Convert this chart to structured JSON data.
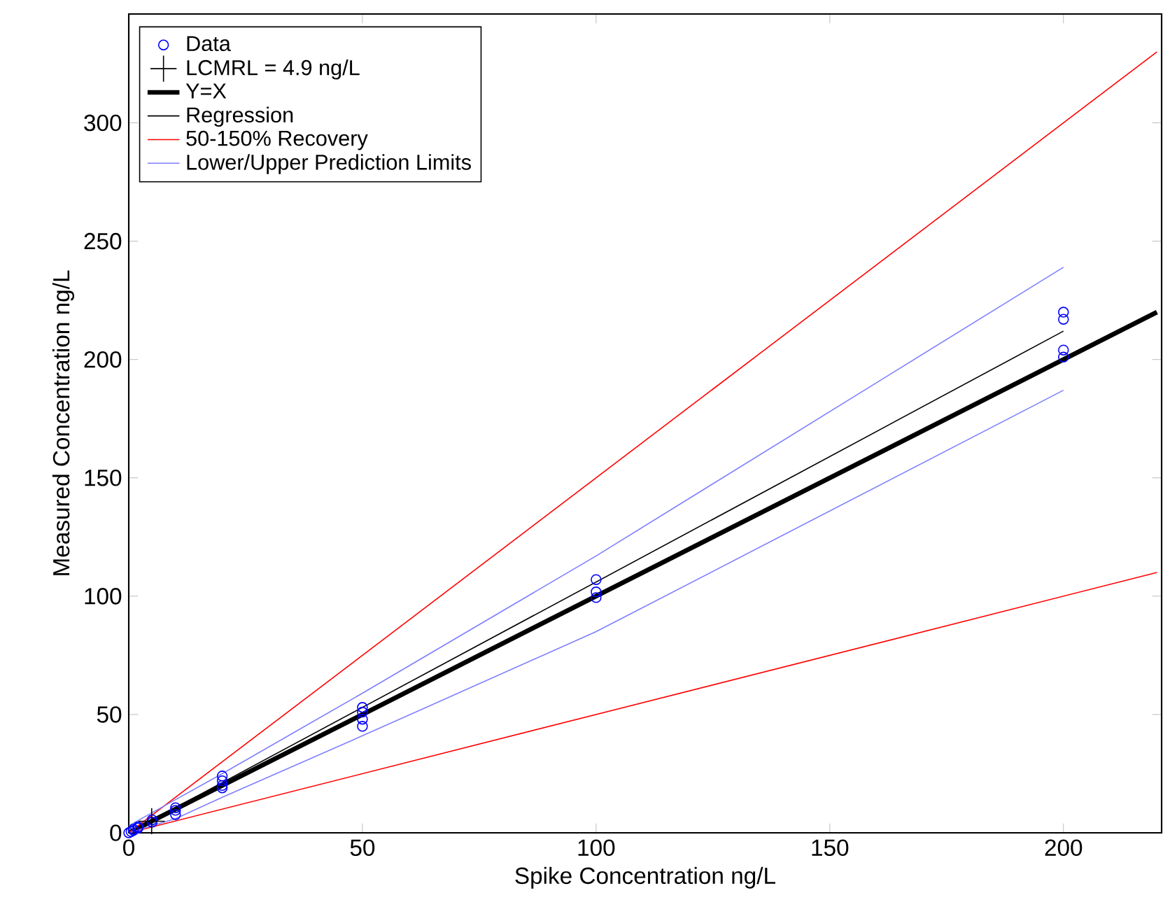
{
  "chart_data": {
    "type": "line",
    "xlabel": "Spike Concentration ng/L",
    "ylabel": "Measured Concentration ng/L",
    "xlim": [
      0,
      221
    ],
    "ylim": [
      0,
      346
    ],
    "xticks": [
      0,
      50,
      100,
      150,
      200
    ],
    "yticks": [
      0,
      50,
      100,
      150,
      200,
      250,
      300
    ],
    "grid": false,
    "legend": "top left",
    "series": [
      {
        "name": "Data",
        "type": "scatter",
        "marker": "circle",
        "color": "#0000ff",
        "x": [
          0,
          0.5,
          1,
          1,
          2,
          2,
          5,
          5,
          10,
          10,
          10,
          20,
          20,
          20,
          20,
          50,
          50,
          50,
          50,
          100,
          100,
          100,
          200,
          200,
          200,
          200
        ],
        "values": [
          0,
          0.5,
          1,
          1.5,
          2,
          2.5,
          4.5,
          5.5,
          10.6,
          9.5,
          7.7,
          24,
          22,
          20,
          19,
          53,
          51,
          48,
          45,
          107,
          101.8,
          99.4,
          220,
          217,
          204,
          201
        ]
      },
      {
        "name": "LCMRL = 4.9 ng/L",
        "type": "scatter",
        "marker": "cross",
        "color": "#000000",
        "x": [
          4.9
        ],
        "values": [
          4.9
        ]
      },
      {
        "name": "Y=X",
        "color": "#000000",
        "x": [
          0,
          220
        ],
        "values": [
          0,
          220
        ]
      },
      {
        "name": "Regression",
        "color": "#000000",
        "x": [
          0,
          200
        ],
        "values": [
          0,
          212
        ]
      },
      {
        "name": "50-150% Recovery",
        "color": "#ff0000",
        "x": [
          0,
          220
        ],
        "values": [
          0,
          330
        ]
      },
      {
        "color": "#ff0000",
        "x": [
          0,
          220
        ],
        "values": [
          0,
          110
        ]
      },
      {
        "name": "Lower/Upper Prediction Limits",
        "color": "#7f7fff",
        "x": [
          0,
          10,
          20,
          50,
          100,
          200
        ],
        "values": [
          3,
          14,
          25,
          59,
          117,
          239
        ]
      },
      {
        "color": "#7f7fff",
        "x": [
          0,
          10,
          20,
          50,
          100,
          200
        ],
        "values": [
          0,
          6,
          15,
          41,
          85,
          187
        ]
      }
    ]
  }
}
